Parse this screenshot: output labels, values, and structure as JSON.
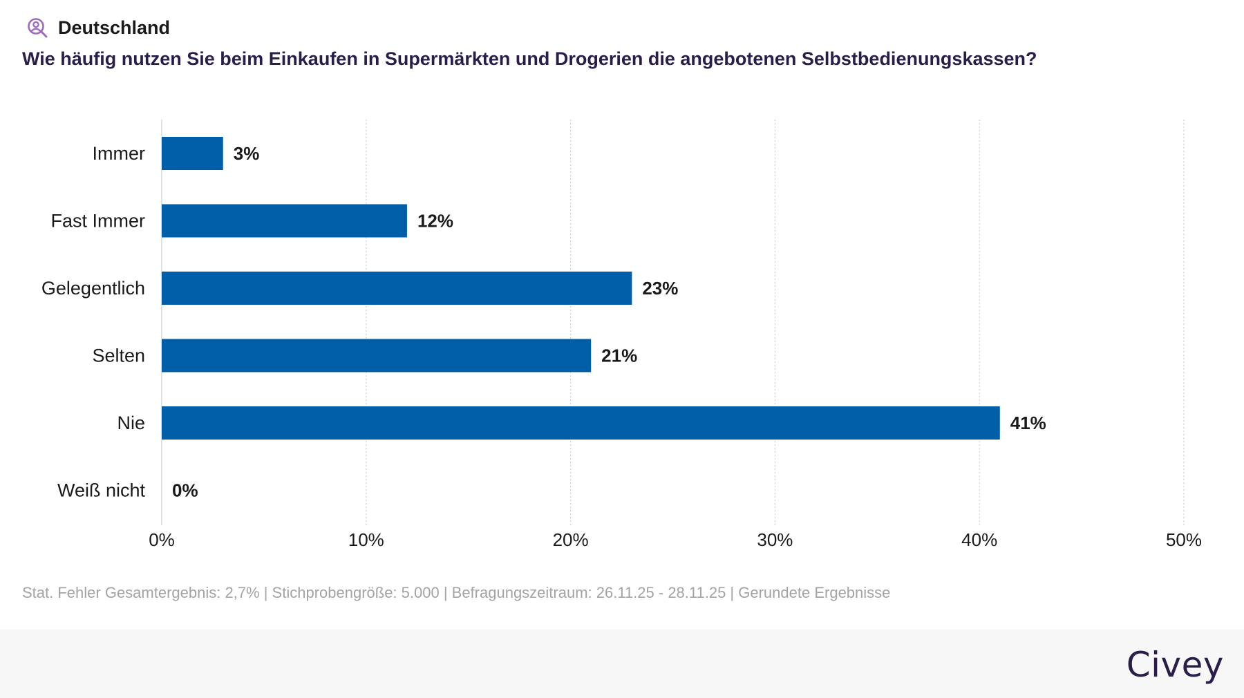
{
  "header": {
    "icon": "person-search-icon",
    "region": "Deutschland",
    "question": "Wie häufig nutzen Sie beim Einkaufen in Supermärkten und Drogerien die angebotenen Selbstbedienungskassen?"
  },
  "chart_data": {
    "type": "bar",
    "orientation": "horizontal",
    "title": "Wie häufig nutzen Sie beim Einkaufen in Supermärkten und Drogerien die angebotenen Selbstbedienungskassen?",
    "categories": [
      "Immer",
      "Fast Immer",
      "Gelegentlich",
      "Selten",
      "Nie",
      "Weiß nicht"
    ],
    "values": [
      3,
      12,
      23,
      21,
      41,
      0
    ],
    "value_labels": [
      "3%",
      "12%",
      "23%",
      "21%",
      "41%",
      "0%"
    ],
    "xlim": [
      0,
      50
    ],
    "xticks": [
      0,
      10,
      20,
      30,
      40,
      50
    ],
    "xtick_labels": [
      "0%",
      "10%",
      "20%",
      "30%",
      "40%",
      "50%"
    ],
    "xlabel": "",
    "ylabel": "",
    "grid": "vertical-dotted",
    "bar_color": "#005fa8"
  },
  "footnote": "Stat. Fehler Gesamtergebnis: 2,7% | Stichprobengröße: 5.000 | Befragungszeitraum: 26.11.25 - 28.11.25 | Gerundete Ergebnisse",
  "brand": {
    "name": "Civey",
    "color": "#2b1d4a"
  },
  "colors": {
    "accent": "#9b6bbf",
    "title": "#2b1d4a",
    "muted": "#a3a3a3",
    "footer_bg": "#f7f7f7"
  }
}
